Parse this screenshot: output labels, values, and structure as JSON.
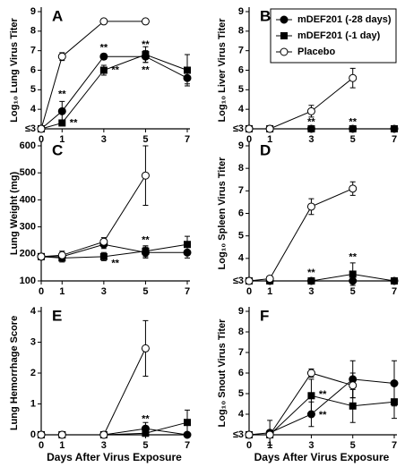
{
  "chart_data": [
    {
      "type": "line",
      "label": "A",
      "ylabel": "Log₁₀ Lung Virus Titer",
      "x": [
        0,
        1,
        3,
        5,
        7
      ],
      "xlim": [
        0,
        7
      ],
      "xticks": [
        0,
        1,
        3,
        5,
        7
      ],
      "ylim": [
        3,
        9
      ],
      "yticks": [
        {
          "value": 3,
          "label": "≤3"
        },
        4,
        5,
        6,
        7,
        8,
        9
      ],
      "series": [
        {
          "marker": "circle-filled",
          "color": "#000000",
          "values": [
            3,
            3.9,
            6.7,
            6.7,
            5.6
          ],
          "errors": [
            0,
            0.5,
            0.15,
            0.3,
            0.3
          ]
        },
        {
          "marker": "square-filled",
          "color": "#000000",
          "values": [
            3,
            3.3,
            6.0,
            6.8,
            6.0
          ],
          "errors": [
            0,
            0.1,
            0.25,
            0.4,
            0.8
          ]
        },
        {
          "marker": "circle-open",
          "color": "#000000",
          "values": [
            3,
            6.7,
            8.5,
            8.5,
            null
          ],
          "errors": [
            0,
            0.2,
            0,
            0,
            null
          ]
        }
      ],
      "annotations": [
        {
          "text": "**",
          "x": 1,
          "y": 4.75
        },
        {
          "text": "**",
          "x": 1.55,
          "y": 3.3
        },
        {
          "text": "**",
          "x": 3,
          "y": 7.15
        },
        {
          "text": "**",
          "x": 3.55,
          "y": 6.0
        },
        {
          "text": "**",
          "x": 5,
          "y": 7.3
        },
        {
          "text": "**",
          "x": 5,
          "y": 6.0
        }
      ]
    },
    {
      "type": "line",
      "label": "B",
      "ylabel": "Log₁₀ Liver Virus Titer",
      "x": [
        0,
        1,
        3,
        5,
        7
      ],
      "xlim": [
        0,
        7
      ],
      "xticks": [
        0,
        1,
        3,
        5,
        7
      ],
      "ylim": [
        3,
        9
      ],
      "yticks": [
        {
          "value": 3,
          "label": "≤3"
        },
        4,
        5,
        6,
        7,
        8,
        9
      ],
      "series": [
        {
          "name": "mDEF201 (-28 days)",
          "marker": "circle-filled",
          "color": "#000000",
          "values": [
            3,
            3,
            3,
            3,
            3
          ],
          "errors": [
            0,
            0,
            0,
            0,
            0
          ]
        },
        {
          "name": "mDEF201 (-1 day)",
          "marker": "square-filled",
          "color": "#000000",
          "values": [
            3,
            3,
            3,
            3,
            3
          ],
          "errors": [
            0,
            0,
            0,
            0,
            0
          ]
        },
        {
          "name": "Placebo",
          "marker": "circle-open",
          "color": "#000000",
          "values": [
            3,
            3,
            3.9,
            5.6,
            null
          ],
          "errors": [
            0,
            0,
            0.3,
            0.5,
            null
          ]
        }
      ],
      "annotations": [
        {
          "text": "**",
          "x": 3,
          "y": 3.35
        },
        {
          "text": "**",
          "x": 5,
          "y": 3.35
        }
      ]
    },
    {
      "type": "line",
      "label": "C",
      "ylabel": "Lung Weight (mg)",
      "x": [
        0,
        1,
        3,
        5,
        7
      ],
      "xlim": [
        0,
        7
      ],
      "xticks": [
        0,
        1,
        3,
        5,
        7
      ],
      "ylim": [
        100,
        600
      ],
      "yticks": [
        100,
        200,
        300,
        400,
        500,
        600
      ],
      "series": [
        {
          "marker": "circle-filled",
          "color": "#000000",
          "values": [
            190,
            190,
            235,
            205,
            205
          ],
          "errors": [
            0,
            15,
            15,
            20,
            20
          ]
        },
        {
          "marker": "square-filled",
          "color": "#000000",
          "values": [
            190,
            185,
            190,
            210,
            235
          ],
          "errors": [
            0,
            15,
            15,
            20,
            30
          ]
        },
        {
          "marker": "circle-open",
          "color": "#000000",
          "values": [
            190,
            195,
            245,
            490,
            null
          ],
          "errors": [
            0,
            15,
            15,
            110,
            null
          ]
        }
      ],
      "annotations": [
        {
          "text": "**",
          "x": 3.55,
          "y": 165
        },
        {
          "text": "**",
          "x": 5,
          "y": 250
        }
      ]
    },
    {
      "type": "line",
      "label": "D",
      "ylabel": "Log₁₀ Spleen Virus Titer",
      "x": [
        0,
        1,
        3,
        5,
        7
      ],
      "xlim": [
        0,
        7
      ],
      "xticks": [
        0,
        1,
        3,
        5,
        7
      ],
      "ylim": [
        3,
        9
      ],
      "yticks": [
        {
          "value": 3,
          "label": "≤3"
        },
        4,
        5,
        6,
        7,
        8,
        9
      ],
      "series": [
        {
          "marker": "circle-filled",
          "color": "#000000",
          "values": [
            3,
            3,
            3,
            3,
            3
          ],
          "errors": [
            0,
            0,
            0,
            0,
            0
          ]
        },
        {
          "marker": "square-filled",
          "color": "#000000",
          "values": [
            3,
            3,
            3,
            3.3,
            3
          ],
          "errors": [
            0,
            0,
            0,
            0.5,
            0
          ]
        },
        {
          "marker": "circle-open",
          "color": "#000000",
          "values": [
            3,
            3.1,
            6.3,
            7.1,
            null
          ],
          "errors": [
            0,
            0.1,
            0.35,
            0.3,
            null
          ]
        }
      ],
      "annotations": [
        {
          "text": "**",
          "x": 3,
          "y": 3.35
        },
        {
          "text": "**",
          "x": 5,
          "y": 4.05
        }
      ]
    },
    {
      "type": "line",
      "label": "E",
      "ylabel": "Lung Hemorrhage Score",
      "xlabel": "Days After Virus Exposure",
      "x": [
        0,
        1,
        3,
        5,
        7
      ],
      "xlim": [
        0,
        7
      ],
      "xticks": [
        0,
        1,
        3,
        5,
        7
      ],
      "ylim": [
        0,
        4
      ],
      "yticks": [
        0,
        1,
        2,
        3,
        4
      ],
      "series": [
        {
          "marker": "circle-filled",
          "color": "#000000",
          "values": [
            0,
            0,
            0,
            0.2,
            0
          ],
          "errors": [
            0,
            0,
            0,
            0.2,
            0
          ]
        },
        {
          "marker": "square-filled",
          "color": "#000000",
          "values": [
            0,
            0,
            0,
            0.05,
            0.4
          ],
          "errors": [
            0,
            0,
            0,
            0.05,
            0.4
          ]
        },
        {
          "marker": "circle-open",
          "color": "#000000",
          "values": [
            0,
            0,
            0,
            2.8,
            null
          ],
          "errors": [
            0,
            0,
            0,
            0.9,
            null
          ]
        }
      ],
      "annotations": [
        {
          "text": "**",
          "x": 5,
          "y": 0.5
        }
      ]
    },
    {
      "type": "line",
      "label": "F",
      "ylabel": "Log₁₀ Snout Virus Titer",
      "xlabel": "Days After Virus Exposure",
      "x": [
        0,
        1,
        3,
        5,
        7
      ],
      "xlim": [
        0,
        7
      ],
      "xticks": [
        0,
        1,
        3,
        5,
        7
      ],
      "ylim": [
        3,
        9
      ],
      "yticks": [
        {
          "value": 3,
          "label": "≤3"
        },
        4,
        5,
        6,
        7,
        8,
        9
      ],
      "series": [
        {
          "marker": "circle-filled",
          "color": "#000000",
          "values": [
            3,
            3.1,
            4.0,
            5.7,
            5.5
          ],
          "errors": [
            0,
            0.6,
            0.6,
            0.9,
            1.1
          ]
        },
        {
          "marker": "square-filled",
          "color": "#000000",
          "values": [
            3,
            3,
            4.9,
            4.4,
            4.6
          ],
          "errors": [
            0,
            0,
            0.8,
            0.8,
            0.8
          ]
        },
        {
          "marker": "circle-open",
          "color": "#000000",
          "values": [
            3,
            3,
            6.0,
            5.4,
            null
          ],
          "errors": [
            0,
            0,
            0.2,
            0.6,
            null
          ]
        }
      ],
      "annotations": [
        {
          "text": "**",
          "x": 3.55,
          "y": 4.95
        },
        {
          "text": "**",
          "x": 3.55,
          "y": 3.95
        }
      ]
    }
  ]
}
